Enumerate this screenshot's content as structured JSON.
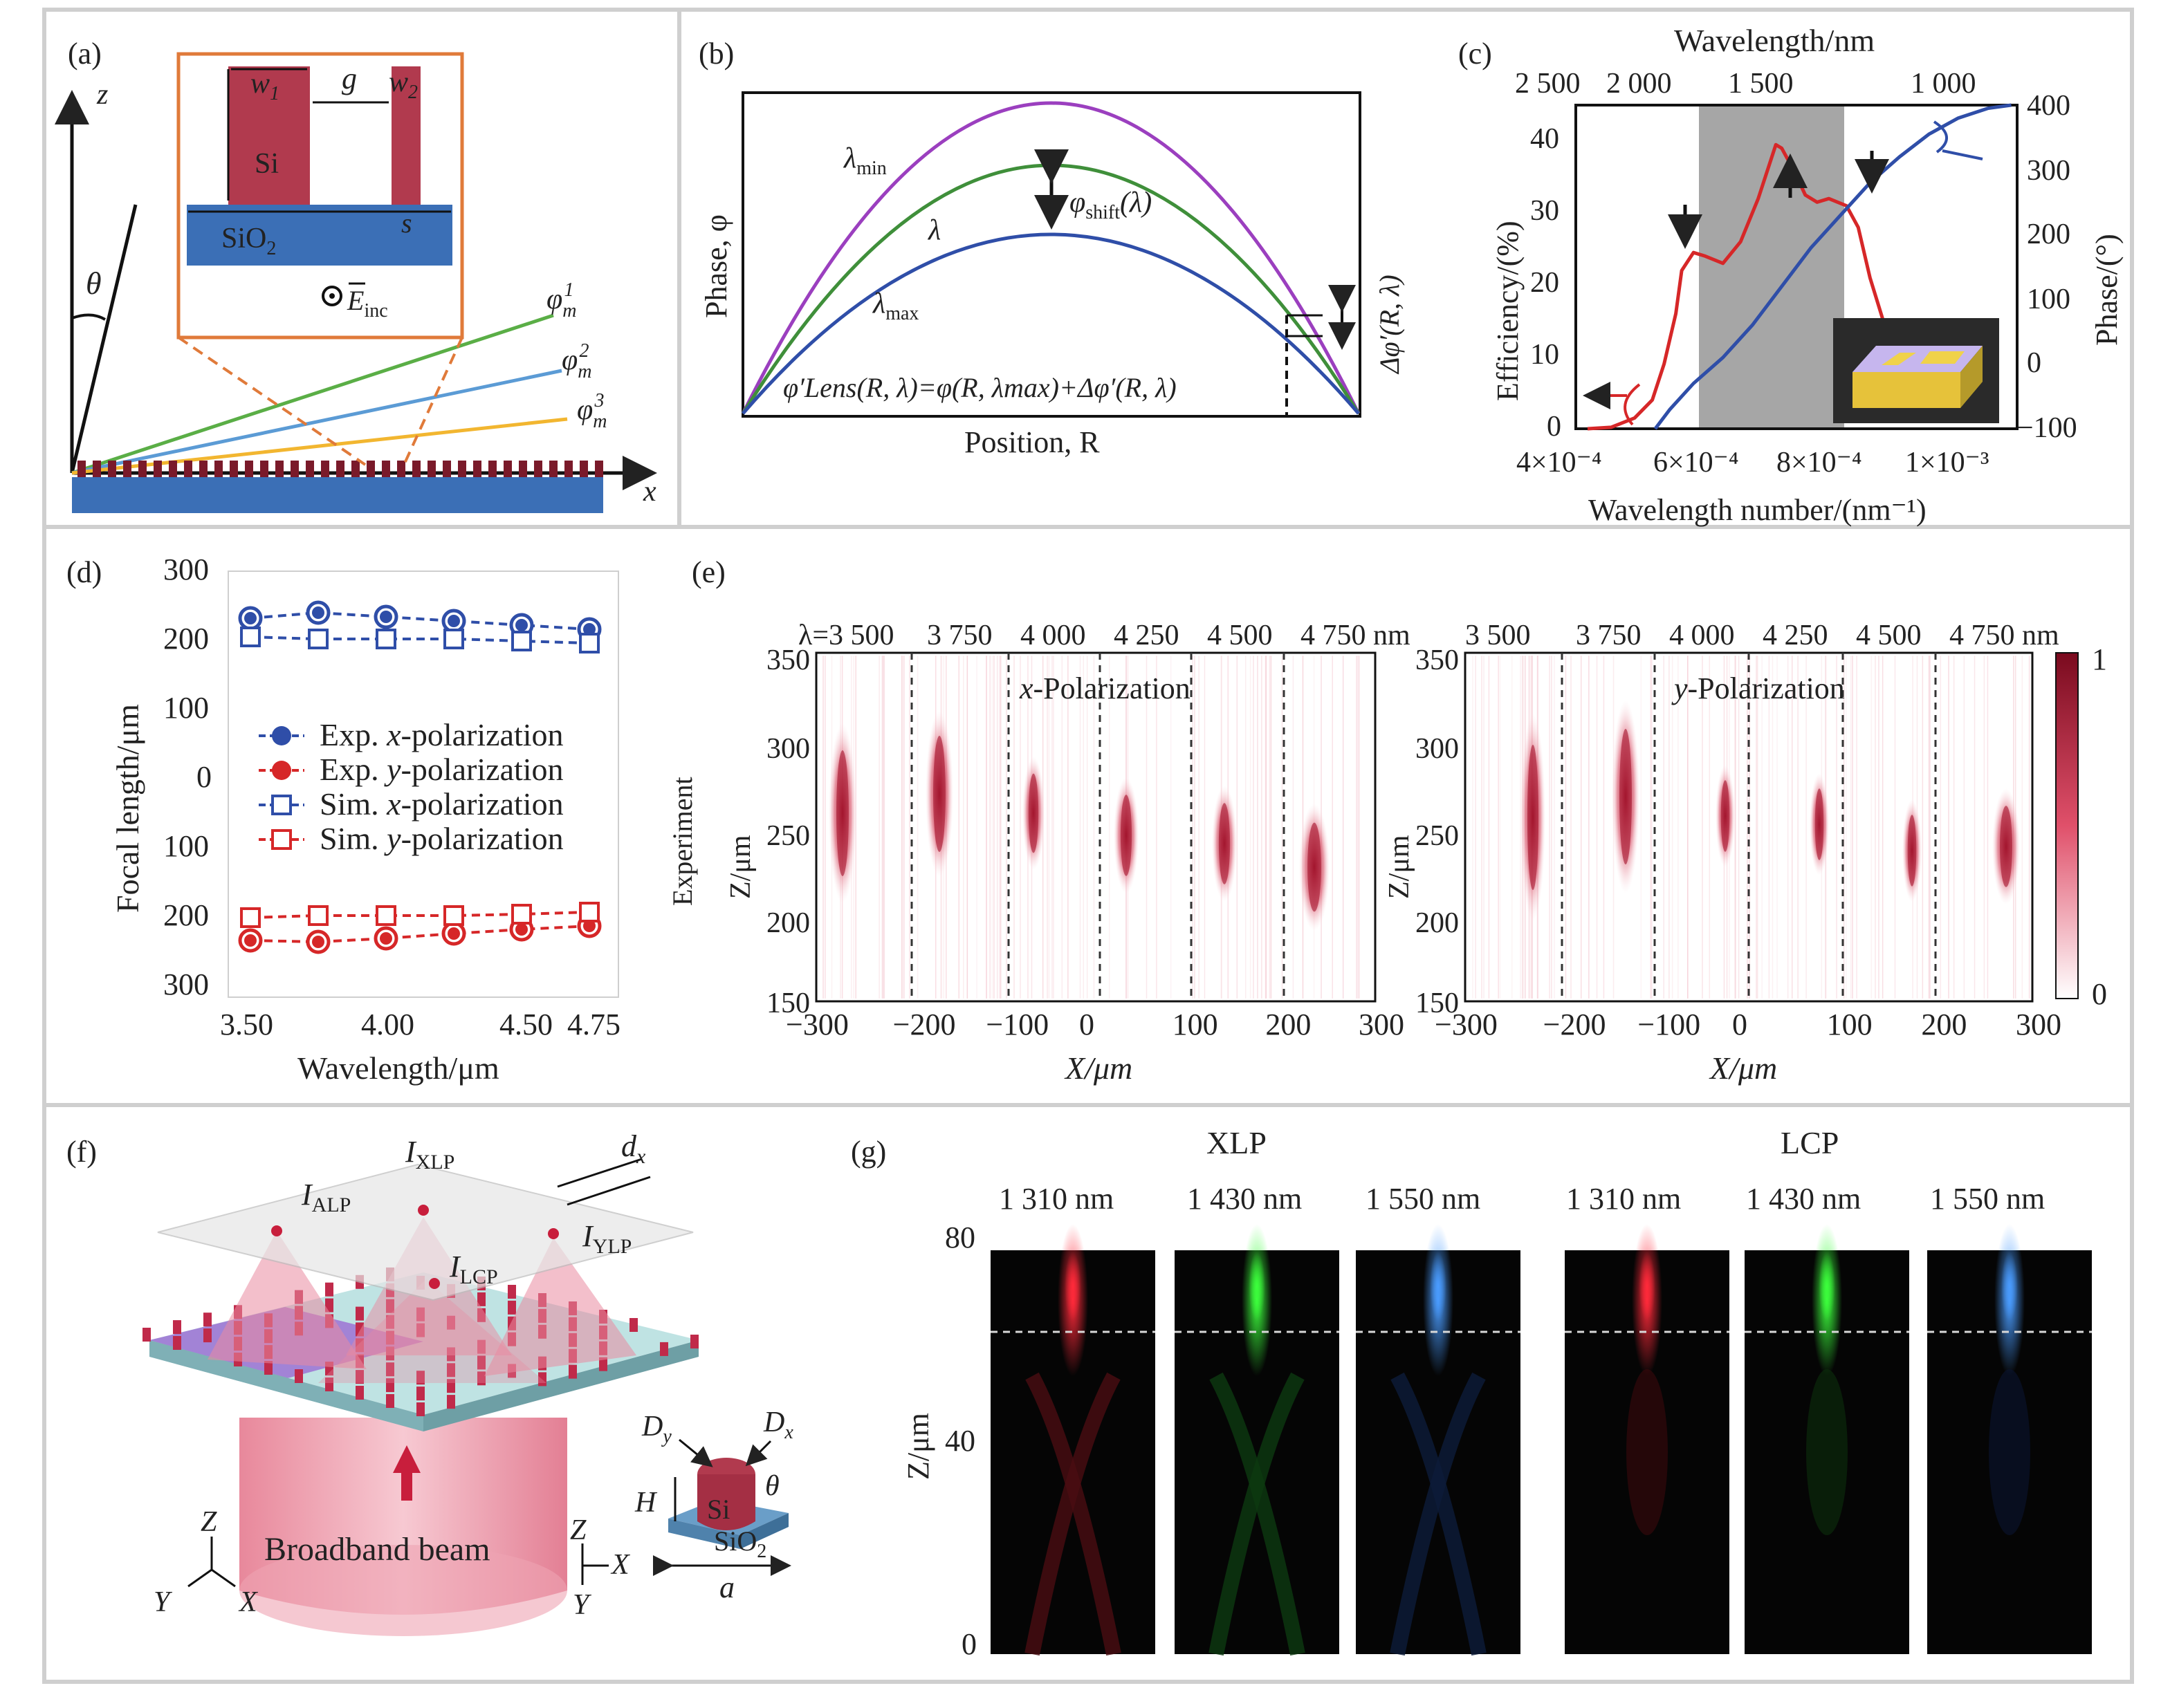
{
  "panel_letters": {
    "a": "(a)",
    "b": "(b)",
    "c": "(c)",
    "d": "(d)",
    "e": "(e)",
    "f": "(f)",
    "g": "(g)"
  },
  "panel_a": {
    "axis_z": "z",
    "axis_x": "x",
    "angle": "θ",
    "inset": {
      "w1": "w",
      "w1_sub": "1",
      "gap": "g",
      "w2": "w",
      "w2_sub": "2",
      "si": "Si",
      "sio2": "SiO",
      "sio2_sub": "2",
      "s": "s",
      "e_field": "E",
      "e_sub": "inc"
    },
    "orders": [
      {
        "base": "φ",
        "sub": "m",
        "sup": "1"
      },
      {
        "base": "φ",
        "sub": "m",
        "sup": "2"
      },
      {
        "base": "φ",
        "sub": "m",
        "sup": "3"
      }
    ],
    "colors": {
      "order1": "#5aae46",
      "order2": "#5b9bd5",
      "order3": "#f2b630",
      "substrate": "#3b6fb6",
      "si": "#b13a4e",
      "inset_border": "#e07a3a"
    }
  },
  "panel_b": {
    "ylabel": "Phase, φ",
    "xlabel": "Position, R",
    "lambda_min": "λ",
    "lambda_min_sub": "min",
    "lambda": "λ",
    "lambda_max": "λ",
    "lambda_max_sub": "max",
    "shift": "φ",
    "shift_sub": "shift",
    "shift_arg": "(λ)",
    "delta": "Δφ′(R, λ)",
    "formula": "φ′Lens(R, λ)=φ(R, λmax)+Δφ′(R, λ)",
    "colors": {
      "min": "#9b3fbf",
      "mid": "#3f8f3a",
      "max": "#2f4ea8"
    }
  },
  "panel_c": {
    "top_label": "Wavelength/nm",
    "top_ticks": [
      "2 500",
      "2 000",
      "1 500",
      "1 000"
    ],
    "ylabel_left": "Efficiency/(%)",
    "ylabel_right": "Phase/(°)",
    "xlabel": "Wavelength number/(nm⁻¹)",
    "left_ticks": [
      "40",
      "30",
      "20",
      "10",
      "0"
    ],
    "right_ticks": [
      "400",
      "300",
      "200",
      "100",
      "0",
      "−100"
    ],
    "bottom_ticks": [
      "4×10⁻⁴",
      "6×10⁻⁴",
      "8×10⁻⁴",
      "1×10⁻³"
    ]
  },
  "chart_data": [
    {
      "type": "line",
      "panel": "c",
      "xlabel": "Wavelength number/(nm⁻¹)",
      "ylabel": "Efficiency/(%)",
      "y2label": "Phase/(°)",
      "xlim": [
        0.0004,
        0.00115
      ],
      "ylim": [
        0,
        45
      ],
      "y2lim": [
        -100,
        400
      ],
      "shaded_region": [
        0.0006,
        0.00083
      ],
      "series": [
        {
          "axis": "left",
          "color": "#d62728",
          "x": [
            0.00042,
            0.00046,
            0.0005,
            0.00053,
            0.00055,
            0.00057,
            0.00058,
            0.0006,
            0.00062,
            0.00065,
            0.00068,
            0.00071,
            0.00073,
            0.00074,
            0.00075,
            0.00077,
            0.00079,
            0.00081,
            0.00083,
            0.00086,
            0.00088,
            0.0009,
            0.00093,
            0.00097,
            0.00103,
            0.0011
          ],
          "y": [
            0,
            0.2,
            1.5,
            4,
            9,
            16,
            22,
            24.5,
            24,
            23,
            26,
            32,
            37,
            39.5,
            39,
            36,
            32.5,
            31.5,
            32,
            31,
            28,
            21,
            13,
            8,
            7,
            8
          ]
        },
        {
          "axis": "right",
          "color": "#2f4ea8",
          "x": [
            0.000535,
            0.00056,
            0.0006,
            0.00065,
            0.0007,
            0.00075,
            0.0008,
            0.00085,
            0.0009,
            0.00095,
            0.001,
            0.00105,
            0.0011,
            0.00114
          ],
          "y": [
            -100,
            -70,
            -30,
            10,
            60,
            120,
            180,
            230,
            280,
            320,
            355,
            380,
            395,
            400
          ]
        }
      ]
    },
    {
      "type": "scatter",
      "panel": "d",
      "xlabel": "Wavelength/μm",
      "ylabel": "Focal length/μm",
      "xlim": [
        3.5,
        4.75
      ],
      "x": [
        3.5,
        3.75,
        4.0,
        4.25,
        4.5,
        4.75
      ],
      "series": [
        {
          "name": "Exp. x-polarization",
          "values": [
            230,
            238,
            232,
            226,
            220,
            214
          ]
        },
        {
          "name": "Exp. y-polarization",
          "values": [
            -236,
            -238,
            -233,
            -226,
            -220,
            -215
          ]
        },
        {
          "name": "Sim. x-polarization",
          "values": [
            203,
            200,
            200,
            200,
            197,
            194
          ]
        },
        {
          "name": "Sim. y-polarization",
          "values": [
            -203,
            -200,
            -200,
            -200,
            -198,
            -195
          ]
        }
      ]
    }
  ],
  "panel_d": {
    "ylabel": "Focal length/μm",
    "xlabel": "Wavelength/μm",
    "yticks": [
      "300",
      "200",
      "100",
      "0",
      "100",
      "200",
      "300"
    ],
    "xticks": [
      "3.50",
      "4.00",
      "4.50",
      "4.75"
    ],
    "legend": [
      {
        "prefix": "Exp. ",
        "axis": "x",
        "suffix": "-polarization"
      },
      {
        "prefix": "Exp. ",
        "axis": "y",
        "suffix": "-polarization"
      },
      {
        "prefix": "Sim. ",
        "axis": "x",
        "suffix": "-polarization"
      },
      {
        "prefix": "Sim. ",
        "axis": "y",
        "suffix": "-polarization"
      }
    ],
    "colors": {
      "x": "#2f4ea8",
      "y": "#d62728"
    }
  },
  "panel_e": {
    "wl_left": [
      "λ=3 500",
      "3 750",
      "4 000",
      "4 250",
      "4 500",
      "4 750 nm"
    ],
    "wl_right": [
      "3 500",
      "3 750",
      "4 000",
      "4 250",
      "4 500",
      "4 750 nm"
    ],
    "title_left": "x-Polarization",
    "title_right": "y-Polarization",
    "side_label": "Experiment",
    "ylabel": "Z/μm",
    "yticks": [
      "350",
      "300",
      "250",
      "200",
      "150"
    ],
    "xticks": [
      "−300",
      "−200",
      "−100",
      "0",
      "100",
      "200",
      "300"
    ],
    "xlabel": "X/μm",
    "colorbar": [
      "1",
      "0"
    ]
  },
  "panel_f": {
    "i_xlp": "I",
    "i_xlp_sub": "XLP",
    "i_alp": "I",
    "i_alp_sub": "ALP",
    "i_lcp": "I",
    "i_lcp_sub": "LCP",
    "i_ylp": "I",
    "i_ylp_sub": "YLP",
    "dx": "d",
    "dx_sub": "x",
    "beam": "Broadband beam",
    "axes_left": [
      "Z",
      "Y",
      "X"
    ],
    "axes_right": [
      "Z",
      "X",
      "Y"
    ],
    "unit": {
      "dy": "D",
      "dy_sub": "y",
      "dx": "D",
      "dx_sub": "x",
      "theta": "θ",
      "h": "H",
      "si": "Si",
      "sio2": "SiO",
      "sio2_sub": "2",
      "a": "a"
    }
  },
  "panel_g": {
    "group_left": "XLP",
    "group_right": "LCP",
    "wavelengths": [
      "1 310 nm",
      "1 430 nm",
      "1 550 nm"
    ],
    "ylabel": "Z/μm",
    "yticks": [
      "80",
      "40",
      "0"
    ]
  }
}
